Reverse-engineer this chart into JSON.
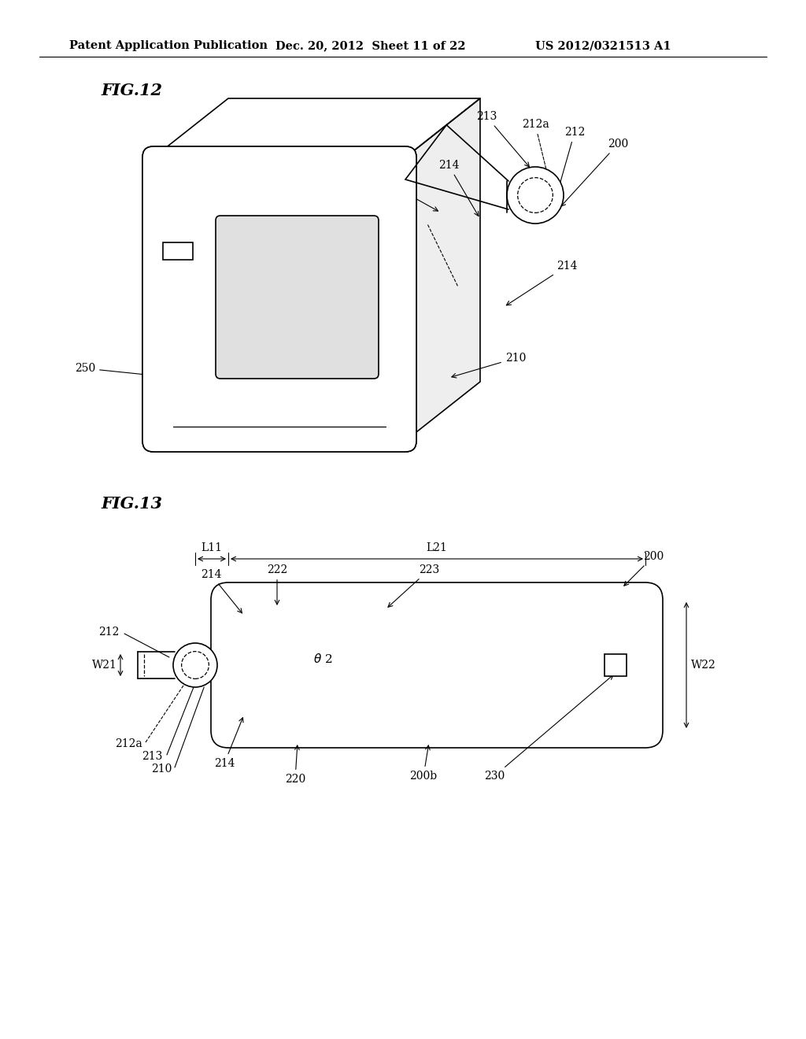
{
  "header_left": "Patent Application Publication",
  "header_mid": "Dec. 20, 2012  Sheet 11 of 22",
  "header_right": "US 2012/0321513 A1",
  "fig12_label": "FIG.12",
  "fig13_label": "FIG.13",
  "bg_color": "#ffffff",
  "line_color": "#000000",
  "header_fontsize": 10.5,
  "fig_label_fontsize": 15,
  "ann_fontsize": 10,
  "lw": 1.2
}
